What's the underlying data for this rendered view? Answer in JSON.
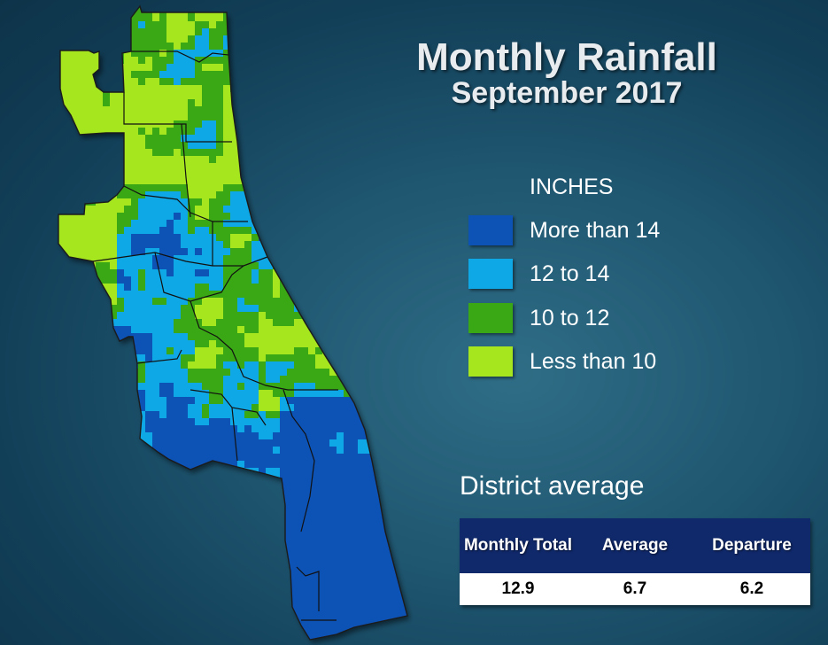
{
  "title": "Monthly Rainfall",
  "subtitle": "September 2017",
  "legend": {
    "title": "INCHES",
    "items": [
      {
        "label": "More than 14",
        "color": "#0d52b5"
      },
      {
        "label": "12 to 14",
        "color": "#0fa8e6"
      },
      {
        "label": "10 to 12",
        "color": "#3aa814"
      },
      {
        "label": "Less than 10",
        "color": "#a6e61e"
      }
    ]
  },
  "district": {
    "heading": "District average",
    "columns": [
      "Monthly Total",
      "Average",
      "Departure"
    ],
    "values": [
      "12.9",
      "6.7",
      "6.2"
    ]
  },
  "colors": {
    "background": "#1a4f68",
    "header": "#10296b",
    "boundary": "#111111"
  }
}
